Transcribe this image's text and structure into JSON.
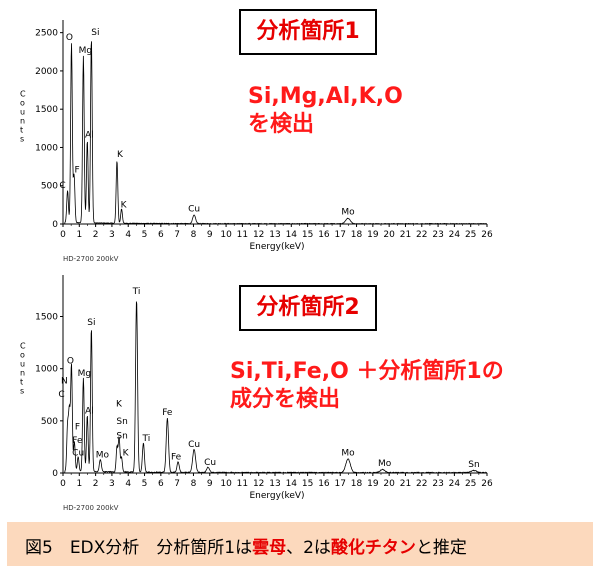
{
  "chart_data": [
    {
      "type": "line",
      "panel_label": "分析箇所1",
      "elements_note": [
        "Si,Mg,Al,K,O",
        "を検出"
      ],
      "xlabel": "Energy(keV)",
      "ylabel": "Counts",
      "instrument": "HD-2700",
      "voltage": "200kV",
      "xlim": [
        0,
        26
      ],
      "ylim": [
        0,
        2600
      ],
      "x_ticks": [
        0,
        1,
        2,
        3,
        4,
        5,
        6,
        7,
        8,
        9,
        10,
        11,
        12,
        13,
        14,
        15,
        16,
        17,
        18,
        19,
        20,
        21,
        22,
        23,
        24,
        25,
        26
      ],
      "y_ticks": [
        0,
        500,
        1000,
        1500,
        2000,
        2500
      ],
      "grid": false,
      "color": "#000000",
      "peaks": [
        {
          "x": 0.28,
          "y": 420,
          "w": 0.05
        },
        {
          "x": 0.52,
          "y": 2350,
          "w": 0.05
        },
        {
          "x": 0.68,
          "y": 620,
          "w": 0.05
        },
        {
          "x": 1.25,
          "y": 2180,
          "w": 0.05
        },
        {
          "x": 1.49,
          "y": 1080,
          "w": 0.05
        },
        {
          "x": 1.74,
          "y": 2420,
          "w": 0.05
        },
        {
          "x": 3.31,
          "y": 820,
          "w": 0.05
        },
        {
          "x": 3.59,
          "y": 190,
          "w": 0.05
        },
        {
          "x": 8.04,
          "y": 110,
          "w": 0.09
        },
        {
          "x": 17.48,
          "y": 70,
          "w": 0.14
        }
      ],
      "labels": [
        {
          "text": "O",
          "x": 0.52,
          "y": 2350
        },
        {
          "text": "Si",
          "x": 1.74,
          "y": 2420
        },
        {
          "text": "Mg",
          "x": 1.25,
          "y": 2180
        },
        {
          "text": "F",
          "x": 0.68,
          "y": 620
        },
        {
          "text": "Al",
          "x": 1.49,
          "y": 1080
        },
        {
          "text": "K",
          "x": 3.31,
          "y": 820
        },
        {
          "text": "C",
          "x": 0.28,
          "y": 420
        },
        {
          "text": "K",
          "x": 3.59,
          "y": 190
        },
        {
          "text": "Cu",
          "x": 8.04,
          "y": 110
        },
        {
          "text": "Mo",
          "x": 17.48,
          "y": 70
        }
      ]
    },
    {
      "type": "line",
      "panel_label": "分析箇所2",
      "elements_note": [
        "Si,Ti,Fe,O ＋分析箇所1の",
        "成分を検出"
      ],
      "xlabel": "Energy(keV)",
      "ylabel": "Counts",
      "instrument": "HD-2700",
      "voltage": "200kV",
      "xlim": [
        0,
        26
      ],
      "ylim": [
        0,
        1850
      ],
      "x_ticks": [
        0,
        1,
        2,
        3,
        4,
        5,
        6,
        7,
        8,
        9,
        10,
        11,
        12,
        13,
        14,
        15,
        16,
        17,
        18,
        19,
        20,
        21,
        22,
        23,
        24,
        25,
        26
      ],
      "y_ticks": [
        0,
        500,
        1000,
        1500
      ],
      "grid": false,
      "color": "#000000",
      "peaks": [
        {
          "x": 0.28,
          "y": 430,
          "w": 0.05
        },
        {
          "x": 0.39,
          "y": 560,
          "w": 0.05
        },
        {
          "x": 0.52,
          "y": 1020,
          "w": 0.05
        },
        {
          "x": 0.7,
          "y": 280,
          "w": 0.05
        },
        {
          "x": 0.93,
          "y": 140,
          "w": 0.05
        },
        {
          "x": 1.25,
          "y": 900,
          "w": 0.05
        },
        {
          "x": 1.49,
          "y": 540,
          "w": 0.05
        },
        {
          "x": 1.74,
          "y": 1380,
          "w": 0.05
        },
        {
          "x": 2.29,
          "y": 120,
          "w": 0.06
        },
        {
          "x": 3.31,
          "y": 240,
          "w": 0.05
        },
        {
          "x": 3.44,
          "y": 330,
          "w": 0.05
        },
        {
          "x": 3.59,
          "y": 140,
          "w": 0.05
        },
        {
          "x": 4.51,
          "y": 1660,
          "w": 0.06
        },
        {
          "x": 4.93,
          "y": 280,
          "w": 0.06
        },
        {
          "x": 6.4,
          "y": 520,
          "w": 0.07
        },
        {
          "x": 7.06,
          "y": 100,
          "w": 0.07
        },
        {
          "x": 8.04,
          "y": 220,
          "w": 0.09
        },
        {
          "x": 8.9,
          "y": 50,
          "w": 0.09
        },
        {
          "x": 17.48,
          "y": 130,
          "w": 0.14
        },
        {
          "x": 19.6,
          "y": 30,
          "w": 0.14
        },
        {
          "x": 25.2,
          "y": 20,
          "w": 0.16
        }
      ],
      "labels": [
        {
          "text": "Ti",
          "x": 4.51,
          "y": 1660
        },
        {
          "text": "Si",
          "x": 1.74,
          "y": 1380
        },
        {
          "text": "O",
          "x": 0.52,
          "y": 1020
        },
        {
          "text": "Mg",
          "x": 1.25,
          "y": 900
        },
        {
          "text": "N",
          "x": 0.39,
          "y": 830
        },
        {
          "text": "C",
          "x": 0.28,
          "y": 700
        },
        {
          "text": "Al",
          "x": 1.49,
          "y": 540
        },
        {
          "text": "K",
          "x": 3.31,
          "y": 600
        },
        {
          "text": "Sn",
          "x": 3.44,
          "y": 440
        },
        {
          "text": "F",
          "x": 0.7,
          "y": 390
        },
        {
          "text": "Fe",
          "x": 0.7,
          "y": 260
        },
        {
          "text": "Sn",
          "x": 3.44,
          "y": 300
        },
        {
          "text": "Fe",
          "x": 6.4,
          "y": 520
        },
        {
          "text": "Ti",
          "x": 4.93,
          "y": 280
        },
        {
          "text": "Cu",
          "x": 0.93,
          "y": 140
        },
        {
          "text": "Mo",
          "x": 2.29,
          "y": 120
        },
        {
          "text": "K",
          "x": 3.59,
          "y": 140
        },
        {
          "text": "Cu",
          "x": 8.04,
          "y": 220
        },
        {
          "text": "Fe",
          "x": 7.06,
          "y": 100
        },
        {
          "text": "Cu",
          "x": 8.9,
          "y": 50
        },
        {
          "text": "Mo",
          "x": 17.48,
          "y": 130
        },
        {
          "text": "Mo",
          "x": 19.6,
          "y": 30
        },
        {
          "text": "Sn",
          "x": 25.2,
          "y": 20
        }
      ]
    }
  ],
  "caption": {
    "part1": "図5　EDX分析　分析箇所1は",
    "part2": "雲母",
    "part3": "、2は",
    "part4": "酸化チタン",
    "part5": "と推定",
    "bg_color": "#fcd9bd",
    "highlight_color": "#e60000"
  }
}
